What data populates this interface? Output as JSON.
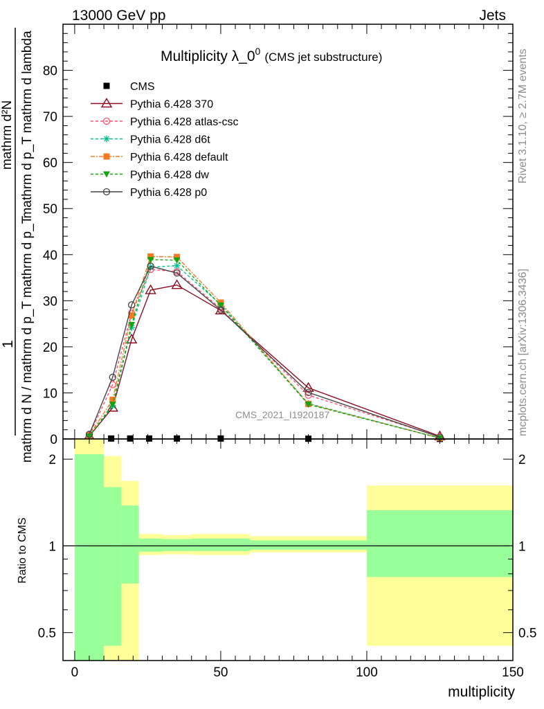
{
  "header": {
    "left": "13000 GeV pp",
    "right": "Jets"
  },
  "side": {
    "rivet": "Rivet 3.1.10, ≥ 2.7M events",
    "mcplots": "mcplots.cern.ch [arXiv:1306.3436]"
  },
  "chart_data": [
    {
      "type": "line",
      "title": "Multiplicity λ_0",
      "title_sup": "0",
      "subtitle": "(CMS jet substructure)",
      "watermark": "CMS_2021_I1920187",
      "ylabel_top": "1",
      "ylabel_num": "mathrm d²N",
      "ylabel_den": "mathrm d p_T mathrm d lambda",
      "ylabel_fracden": "mathrm d N / mathrm d p_T mathrm d p_T",
      "xlim": [
        -4,
        150
      ],
      "ylim": [
        0,
        90
      ],
      "y_ticks": [
        0,
        10,
        20,
        30,
        40,
        50,
        60,
        70,
        80
      ],
      "series": [
        {
          "name": "CMS",
          "color": "#000000",
          "marker": "square",
          "dash": "none",
          "x": [
            5,
            12.5,
            19,
            25.5,
            35,
            50,
            80,
            125
          ],
          "y": [
            0.05,
            0.1,
            0.1,
            0.1,
            0.1,
            0.1,
            0.05,
            0.02
          ]
        },
        {
          "name": "Pythia 6.428 370",
          "color": "#8b0a1e",
          "marker": "triangle-open",
          "dash": "none",
          "x": [
            5,
            13,
            19.5,
            26,
            35,
            50,
            80,
            125
          ],
          "y": [
            0.6,
            6.8,
            21.6,
            32.3,
            33.4,
            27.9,
            11.1,
            0.6
          ]
        },
        {
          "name": "Pythia 6.428 atlas-csc",
          "color": "#ff4d6b",
          "marker": "circle-open",
          "dash": "4,3",
          "x": [
            5,
            13,
            19.5,
            26,
            35,
            50,
            80,
            125
          ],
          "y": [
            0.8,
            11.8,
            27.3,
            36.8,
            36.3,
            28.3,
            9.5,
            0.5
          ]
        },
        {
          "name": "Pythia 6.428 d6t",
          "color": "#00bf8f",
          "marker": "star",
          "dash": "4,3",
          "x": [
            5,
            13,
            19.5,
            26,
            35,
            50,
            80,
            125
          ],
          "y": [
            0.6,
            7.2,
            24.2,
            37.3,
            37.6,
            29.2,
            7.7,
            0.2
          ]
        },
        {
          "name": "Pythia 6.428 default",
          "color": "#f47a21",
          "marker": "square",
          "dash": "6,2,2,2",
          "x": [
            5,
            13,
            19.5,
            26,
            35,
            50,
            80,
            125
          ],
          "y": [
            0.8,
            8.5,
            26.8,
            39.6,
            39.5,
            29.6,
            7.6,
            0.2
          ]
        },
        {
          "name": "Pythia 6.428 dw",
          "color": "#11a611",
          "marker": "triangle-down",
          "dash": "4,3",
          "x": [
            5,
            13,
            19.5,
            26,
            35,
            50,
            80,
            125
          ],
          "y": [
            0.6,
            7.5,
            24.8,
            38.9,
            38.8,
            29.0,
            7.5,
            0.2
          ]
        },
        {
          "name": "Pythia 6.428 p0",
          "color": "#444444",
          "marker": "circle-open",
          "dash": "none",
          "x": [
            5,
            13,
            19.5,
            26,
            35,
            50,
            80,
            125
          ],
          "y": [
            1.0,
            13.4,
            29.1,
            37.5,
            36.0,
            28.0,
            10.1,
            0.4
          ]
        }
      ]
    },
    {
      "type": "area",
      "ylabel": "Ratio to CMS",
      "xlabel": "multiplicity",
      "scale": "log",
      "ylim": [
        0.4,
        2.35
      ],
      "y_ticks": [
        0.5,
        1,
        2
      ],
      "y_tick_labels": [
        "0.5",
        "1",
        "2"
      ],
      "x_ticks": [
        0,
        50,
        100,
        150
      ],
      "x_tick_labels": [
        "0",
        "50",
        "100",
        "150"
      ],
      "bins": [
        {
          "x0": 0,
          "x1": 10,
          "inner": [
            0.4,
            2.08
          ],
          "outer": [
            0.4,
            2.35
          ]
        },
        {
          "x0": 10,
          "x1": 16,
          "inner": [
            0.45,
            1.6
          ],
          "outer": [
            0.4,
            2.05
          ]
        },
        {
          "x0": 16,
          "x1": 22,
          "inner": [
            0.74,
            1.38
          ],
          "outer": [
            0.4,
            1.68
          ]
        },
        {
          "x0": 22,
          "x1": 30,
          "inner": [
            0.955,
            1.06
          ],
          "outer": [
            0.93,
            1.1
          ]
        },
        {
          "x0": 30,
          "x1": 40,
          "inner": [
            0.96,
            1.055
          ],
          "outer": [
            0.935,
            1.09
          ]
        },
        {
          "x0": 40,
          "x1": 60,
          "inner": [
            0.96,
            1.06
          ],
          "outer": [
            0.93,
            1.1
          ]
        },
        {
          "x0": 60,
          "x1": 100,
          "inner": [
            0.97,
            1.045
          ],
          "outer": [
            0.95,
            1.08
          ]
        },
        {
          "x0": 100,
          "x1": 150,
          "inner": [
            0.78,
            1.33
          ],
          "outer": [
            0.45,
            1.62
          ]
        }
      ],
      "colors": {
        "inner": "#99ff99",
        "outer": "#ffff99"
      }
    }
  ]
}
